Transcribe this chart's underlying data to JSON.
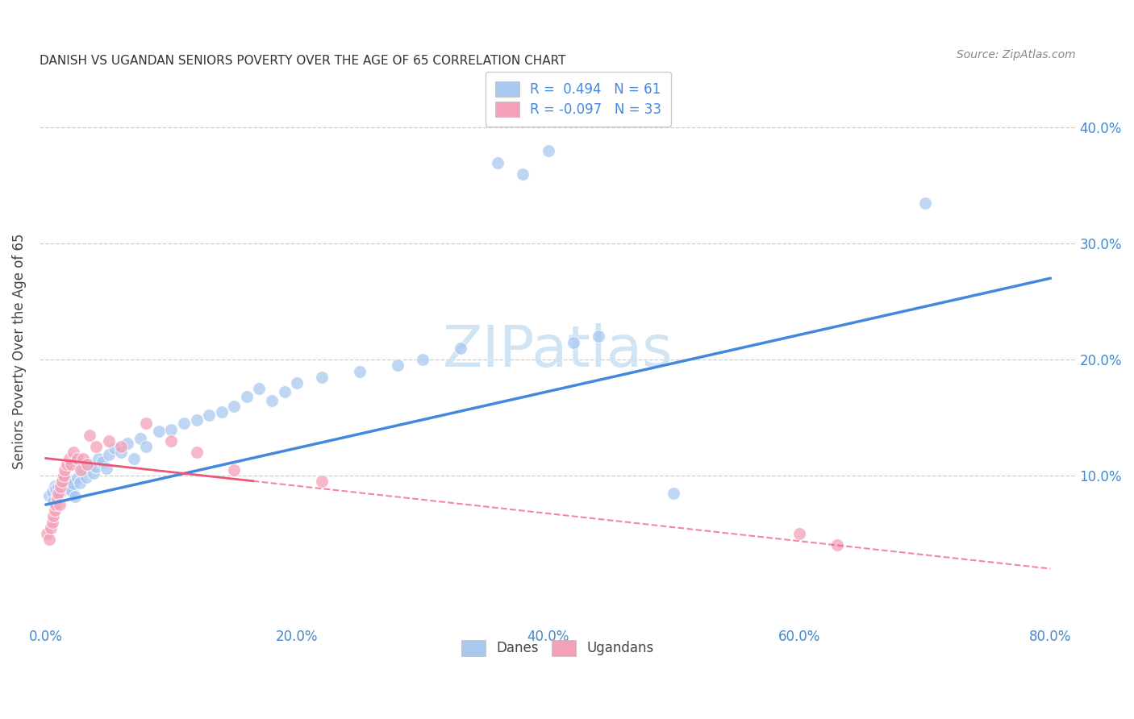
{
  "title": "DANISH VS UGANDAN SENIORS POVERTY OVER THE AGE OF 65 CORRELATION CHART",
  "source": "Source: ZipAtlas.com",
  "ylabel": "Seniors Poverty Over the Age of 65",
  "xlabel_ticks": [
    "0.0%",
    "20.0%",
    "40.0%",
    "60.0%",
    "80.0%"
  ],
  "xlabel_vals": [
    0.0,
    0.2,
    0.4,
    0.6,
    0.8
  ],
  "ylabel_ticks": [
    "10.0%",
    "20.0%",
    "30.0%",
    "40.0%"
  ],
  "ylabel_vals": [
    0.1,
    0.2,
    0.3,
    0.4
  ],
  "xlim": [
    -0.005,
    0.82
  ],
  "ylim": [
    -0.025,
    0.44
  ],
  "danes_color": "#A8C8F0",
  "ugandans_color": "#F4A0B8",
  "danes_line_color": "#4488DD",
  "ugandans_line_color": "#EE5577",
  "background_color": "#FFFFFF",
  "watermark_text": "ZIPatlas",
  "watermark_color": "#D0E4F4",
  "watermark_fontsize": 52,
  "danes_x": [
    0.003,
    0.005,
    0.006,
    0.007,
    0.008,
    0.009,
    0.01,
    0.011,
    0.012,
    0.013,
    0.014,
    0.015,
    0.016,
    0.017,
    0.018,
    0.019,
    0.02,
    0.021,
    0.022,
    0.023,
    0.025,
    0.027,
    0.03,
    0.032,
    0.035,
    0.038,
    0.04,
    0.042,
    0.045,
    0.048,
    0.05,
    0.055,
    0.06,
    0.065,
    0.07,
    0.075,
    0.08,
    0.09,
    0.1,
    0.11,
    0.12,
    0.13,
    0.14,
    0.15,
    0.16,
    0.17,
    0.18,
    0.19,
    0.2,
    0.22,
    0.25,
    0.28,
    0.3,
    0.33,
    0.36,
    0.38,
    0.4,
    0.42,
    0.44,
    0.5,
    0.7
  ],
  "danes_y": [
    0.083,
    0.086,
    0.078,
    0.091,
    0.088,
    0.082,
    0.09,
    0.085,
    0.093,
    0.087,
    0.092,
    0.095,
    0.089,
    0.094,
    0.088,
    0.096,
    0.091,
    0.087,
    0.093,
    0.082,
    0.098,
    0.094,
    0.105,
    0.099,
    0.11,
    0.102,
    0.108,
    0.115,
    0.112,
    0.106,
    0.118,
    0.124,
    0.12,
    0.128,
    0.115,
    0.132,
    0.125,
    0.138,
    0.14,
    0.145,
    0.148,
    0.152,
    0.155,
    0.16,
    0.168,
    0.175,
    0.165,
    0.172,
    0.18,
    0.185,
    0.19,
    0.195,
    0.2,
    0.21,
    0.37,
    0.36,
    0.38,
    0.215,
    0.22,
    0.085,
    0.335
  ],
  "ugandans_x": [
    0.001,
    0.003,
    0.004,
    0.005,
    0.006,
    0.007,
    0.008,
    0.009,
    0.01,
    0.011,
    0.012,
    0.013,
    0.014,
    0.015,
    0.017,
    0.019,
    0.02,
    0.022,
    0.025,
    0.028,
    0.03,
    0.033,
    0.035,
    0.04,
    0.05,
    0.06,
    0.08,
    0.1,
    0.12,
    0.15,
    0.22,
    0.6,
    0.63
  ],
  "ugandans_y": [
    0.05,
    0.045,
    0.055,
    0.06,
    0.065,
    0.07,
    0.075,
    0.08,
    0.085,
    0.075,
    0.09,
    0.095,
    0.1,
    0.105,
    0.11,
    0.115,
    0.11,
    0.12,
    0.115,
    0.105,
    0.115,
    0.11,
    0.135,
    0.125,
    0.13,
    0.125,
    0.145,
    0.13,
    0.12,
    0.105,
    0.095,
    0.05,
    0.04
  ]
}
